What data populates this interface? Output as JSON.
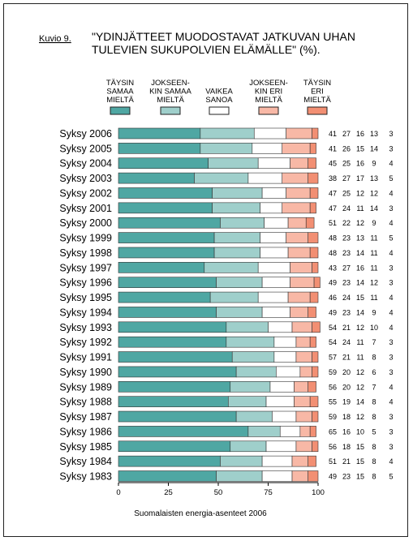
{
  "figure": {
    "label": "Kuvio 9.",
    "title_line1": "\"YDINJÄTTEET MUODOSTAVAT JATKUVAN UHAN",
    "title_line2": "TULEVIEN SUKUPOLVIEN ELÄMÄLLE\" (%).",
    "footer": "Suomalaisten energia-asenteet 2006"
  },
  "chart_data": {
    "type": "bar",
    "orientation": "horizontal",
    "stacked": true,
    "title": "\"YDINJÄTTEET MUODOSTAVAT JATKUVAN UHAN TULEVIEN SUKUPOLVIEN ELÄMÄLLE\" (%).",
    "xlim": [
      0,
      100
    ],
    "xticks": [
      0,
      25,
      50,
      75,
      100
    ],
    "legend_position": "top",
    "categories": [
      "Syksy 2006",
      "Syksy 2005",
      "Syksy 2004",
      "Syksy 2003",
      "Syksy 2002",
      "Syksy 2001",
      "Syksy 2000",
      "Syksy 1999",
      "Syksy 1998",
      "Syksy 1997",
      "Syksy 1996",
      "Syksy 1995",
      "Syksy 1994",
      "Syksy 1993",
      "Syksy 1992",
      "Syksy 1991",
      "Syksy 1990",
      "Syksy 1989",
      "Syksy 1988",
      "Syksy 1987",
      "Syksy 1986",
      "Syksy 1985",
      "Syksy 1984",
      "Syksy 1983"
    ],
    "series": [
      {
        "name": "TÄYSIN SAMAA MIELTÄ",
        "legend_lines": [
          "TÄYSIN",
          "SAMAA",
          "MIELTÄ"
        ],
        "color": "#4fa7a3",
        "values": [
          41,
          41,
          45,
          38,
          47,
          47,
          51,
          48,
          48,
          43,
          49,
          46,
          49,
          54,
          54,
          57,
          59,
          56,
          55,
          59,
          65,
          56,
          51,
          49
        ]
      },
      {
        "name": "JOKSEEN-KIN SAMAA MIELTÄ",
        "legend_lines": [
          "JOKSEEN-",
          "KIN SAMAA",
          "MIELTÄ"
        ],
        "color": "#9fcfcb",
        "values": [
          27,
          26,
          25,
          27,
          25,
          24,
          22,
          23,
          23,
          27,
          23,
          24,
          23,
          21,
          24,
          21,
          20,
          20,
          19,
          18,
          16,
          18,
          21,
          23
        ]
      },
      {
        "name": "VAIKEA SANOA",
        "legend_lines": [
          "VAIKEA",
          "SANOA"
        ],
        "color": "#ffffff",
        "values": [
          16,
          15,
          16,
          17,
          12,
          11,
          12,
          13,
          14,
          16,
          14,
          15,
          14,
          12,
          11,
          11,
          12,
          12,
          14,
          12,
          10,
          15,
          15,
          15
        ]
      },
      {
        "name": "JOKSEEN-KIN ERI MIELTÄ",
        "legend_lines": [
          "JOKSEEN-",
          "KIN ERI",
          "MIELTÄ"
        ],
        "color": "#f8b8a6",
        "values": [
          13,
          14,
          9,
          13,
          12,
          14,
          9,
          11,
          11,
          11,
          12,
          11,
          9,
          10,
          7,
          8,
          6,
          7,
          8,
          8,
          5,
          8,
          8,
          8
        ]
      },
      {
        "name": "TÄYSIN ERI MIELTÄ",
        "legend_lines": [
          "TÄYSIN",
          "ERI",
          "MIELTÄ"
        ],
        "color": "#f28f73",
        "values": [
          3,
          3,
          4,
          5,
          4,
          3,
          4,
          5,
          4,
          3,
          3,
          4,
          4,
          4,
          3,
          3,
          3,
          4,
          4,
          3,
          3,
          3,
          4,
          5
        ]
      }
    ]
  }
}
